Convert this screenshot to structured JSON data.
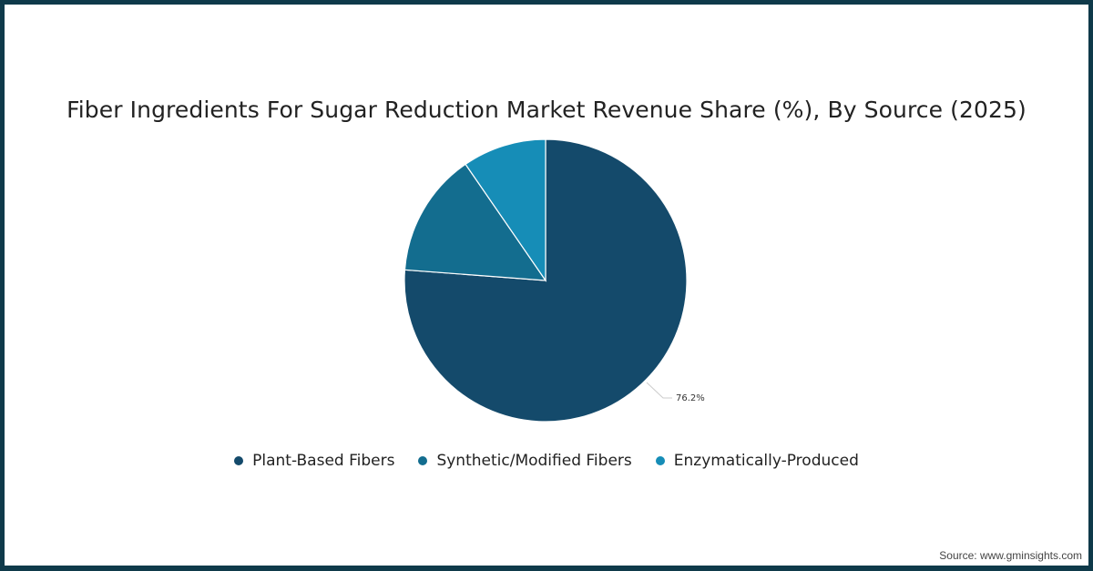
{
  "chart_data": {
    "type": "pie",
    "title": "Fiber Ingredients For Sugar Reduction Market Revenue Share (%), By Source (2025)",
    "categories": [
      "Plant-Based Fibers",
      "Synthetic/Modified Fibers",
      "Enzymatically-Produced"
    ],
    "values": [
      76.2,
      14.2,
      9.6
    ],
    "colors": [
      "#144a6b",
      "#136d8f",
      "#168db7"
    ],
    "data_labels": [
      {
        "category": "Plant-Based Fibers",
        "text": "76.2%"
      }
    ],
    "legend_position": "bottom",
    "start_angle": 0,
    "direction": "clockwise"
  },
  "title": "Fiber Ingredients For Sugar Reduction Market Revenue Share (%), By Source (2025)",
  "legend": [
    {
      "label": "Plant-Based Fibers",
      "color": "#144a6b"
    },
    {
      "label": "Synthetic/Modified Fibers",
      "color": "#136d8f"
    },
    {
      "label": "Enzymatically-Produced",
      "color": "#168db7"
    }
  ],
  "label_plant": "76.2%",
  "source": "Source: www.gminsights.com",
  "colors": {
    "frame": "#0f3a4a"
  }
}
